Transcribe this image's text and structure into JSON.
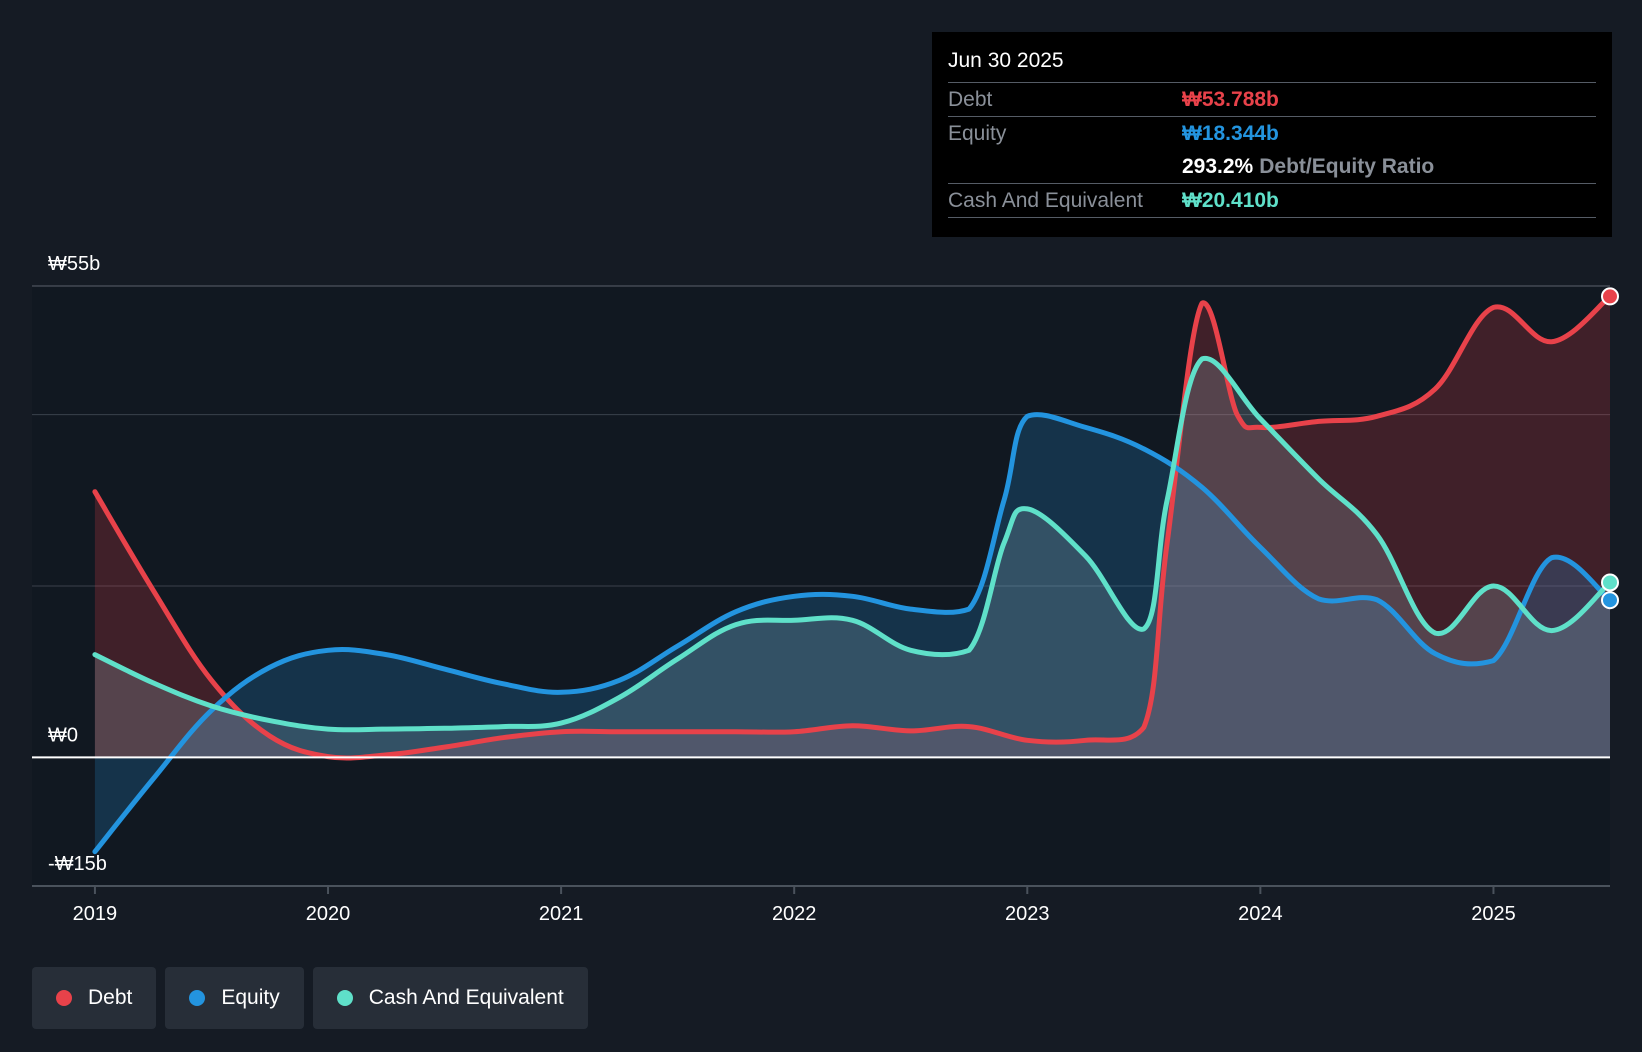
{
  "chart_data": {
    "type": "area",
    "y_unit": "₩b",
    "ylim": [
      -15,
      55
    ],
    "y_tick_labels": [
      {
        "value": 55,
        "label": "₩55b"
      },
      {
        "value": 0,
        "label": "₩0"
      },
      {
        "value": -15,
        "label": "-₩15b"
      }
    ],
    "y_gridlines": [
      55,
      40,
      20,
      0
    ],
    "x_tick_labels": [
      "2019",
      "2020",
      "2021",
      "2022",
      "2023",
      "2024",
      "2025"
    ],
    "x_ticks": [
      2019,
      2020,
      2021,
      2022,
      2023,
      2024,
      2025
    ],
    "xlim": [
      2018.73,
      2025.5
    ],
    "forecast_start": 2019.0,
    "series": [
      {
        "name": "Debt",
        "color": "#e8424a",
        "points": [
          [
            2019.0,
            31.0
          ],
          [
            2019.25,
            19.5
          ],
          [
            2019.5,
            9.0
          ],
          [
            2019.75,
            2.5
          ],
          [
            2020.0,
            0.1
          ],
          [
            2020.25,
            0.3
          ],
          [
            2020.5,
            1.2
          ],
          [
            2020.75,
            2.3
          ],
          [
            2021.0,
            3.0
          ],
          [
            2021.25,
            3.0
          ],
          [
            2021.5,
            3.0
          ],
          [
            2021.75,
            3.0
          ],
          [
            2022.0,
            3.0
          ],
          [
            2022.25,
            3.7
          ],
          [
            2022.5,
            3.1
          ],
          [
            2022.75,
            3.6
          ],
          [
            2023.0,
            2.0
          ],
          [
            2023.25,
            2.0
          ],
          [
            2023.5,
            3.5
          ],
          [
            2023.6,
            25.0
          ],
          [
            2023.75,
            53.0
          ],
          [
            2023.9,
            40.0
          ],
          [
            2024.0,
            38.5
          ],
          [
            2024.25,
            39.2
          ],
          [
            2024.5,
            39.8
          ],
          [
            2024.75,
            43.0
          ],
          [
            2025.0,
            52.5
          ],
          [
            2025.25,
            48.5
          ],
          [
            2025.5,
            53.788
          ]
        ]
      },
      {
        "name": "Equity",
        "color": "#2394df",
        "points": [
          [
            2019.0,
            -11.0
          ],
          [
            2019.25,
            -2.5
          ],
          [
            2019.5,
            5.5
          ],
          [
            2019.75,
            10.5
          ],
          [
            2020.0,
            12.5
          ],
          [
            2020.25,
            12.0
          ],
          [
            2020.5,
            10.3
          ],
          [
            2020.75,
            8.6
          ],
          [
            2021.0,
            7.6
          ],
          [
            2021.25,
            9.0
          ],
          [
            2021.5,
            13.0
          ],
          [
            2021.75,
            17.0
          ],
          [
            2022.0,
            18.8
          ],
          [
            2022.25,
            18.8
          ],
          [
            2022.5,
            17.3
          ],
          [
            2022.75,
            17.3
          ],
          [
            2022.9,
            30.0
          ],
          [
            2023.0,
            39.8
          ],
          [
            2023.25,
            38.5
          ],
          [
            2023.5,
            36.0
          ],
          [
            2023.75,
            31.5
          ],
          [
            2024.0,
            24.5
          ],
          [
            2024.25,
            18.5
          ],
          [
            2024.5,
            18.4
          ],
          [
            2024.75,
            12.1
          ],
          [
            2025.0,
            11.3
          ],
          [
            2025.25,
            23.3
          ],
          [
            2025.5,
            18.344
          ]
        ]
      },
      {
        "name": "Cash And Equivalent",
        "color": "#5fe0c9",
        "points": [
          [
            2019.0,
            12.0
          ],
          [
            2019.25,
            8.7
          ],
          [
            2019.5,
            6.0
          ],
          [
            2019.75,
            4.3
          ],
          [
            2020.0,
            3.3
          ],
          [
            2020.25,
            3.3
          ],
          [
            2020.5,
            3.4
          ],
          [
            2020.75,
            3.6
          ],
          [
            2021.0,
            4.0
          ],
          [
            2021.25,
            7.0
          ],
          [
            2021.5,
            11.5
          ],
          [
            2021.75,
            15.5
          ],
          [
            2022.0,
            16.0
          ],
          [
            2022.25,
            16.0
          ],
          [
            2022.5,
            12.5
          ],
          [
            2022.75,
            12.5
          ],
          [
            2022.9,
            25.0
          ],
          [
            2023.0,
            29.0
          ],
          [
            2023.25,
            23.5
          ],
          [
            2023.5,
            15.0
          ],
          [
            2023.6,
            30.0
          ],
          [
            2023.75,
            46.5
          ],
          [
            2024.0,
            39.5
          ],
          [
            2024.25,
            32.5
          ],
          [
            2024.5,
            26.0
          ],
          [
            2024.75,
            14.5
          ],
          [
            2025.0,
            20.0
          ],
          [
            2025.25,
            14.8
          ],
          [
            2025.5,
            20.41
          ]
        ]
      }
    ]
  },
  "tooltip": {
    "date": "Jun 30 2025",
    "debt_label": "Debt",
    "debt_value": "₩53.788b",
    "equity_label": "Equity",
    "equity_value": "₩18.344b",
    "ratio_value": "293.2%",
    "ratio_label": "Debt/Equity Ratio",
    "cash_label": "Cash And Equivalent",
    "cash_value": "₩20.410b"
  },
  "legend": {
    "items": [
      {
        "label": "Debt",
        "color": "#e8424a"
      },
      {
        "label": "Equity",
        "color": "#2394df"
      },
      {
        "label": "Cash And Equivalent",
        "color": "#5fe0c9"
      }
    ]
  },
  "colors": {
    "background": "#151b24",
    "plot_background": "#111821",
    "gridline": "#3a414b",
    "zero_line": "#ffffff",
    "axis_line": "#4a525c"
  }
}
